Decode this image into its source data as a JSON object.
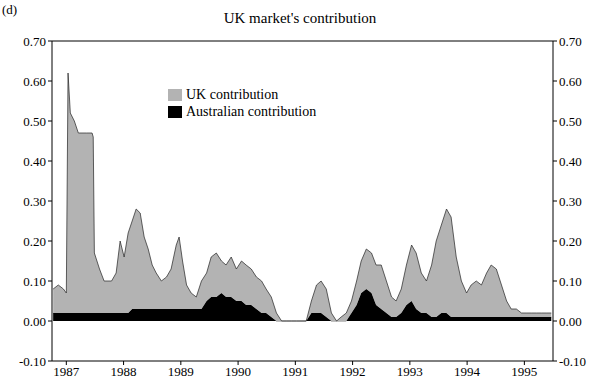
{
  "chart_data": {
    "type": "area",
    "title": "UK market's contribution",
    "annotations": [
      "(d)"
    ],
    "stacked": true,
    "grid": false,
    "legend": "upper left",
    "x": [
      1986.77,
      1986.86,
      1986.95,
      1987.0,
      1987.03,
      1987.07,
      1987.14,
      1987.21,
      1987.35,
      1987.45,
      1987.47,
      1987.49,
      1987.58,
      1987.66,
      1987.79,
      1987.87,
      1987.94,
      1988.01,
      1988.08,
      1988.15,
      1988.22,
      1988.29,
      1988.36,
      1988.43,
      1988.5,
      1988.57,
      1988.66,
      1988.75,
      1988.83,
      1988.92,
      1988.97,
      1989.03,
      1989.1,
      1989.18,
      1989.27,
      1989.36,
      1989.45,
      1989.53,
      1989.62,
      1989.71,
      1989.79,
      1989.88,
      1989.97,
      1990.06,
      1990.14,
      1990.23,
      1990.32,
      1990.41,
      1990.49,
      1990.58,
      1990.67,
      1990.76,
      1990.84,
      1990.93,
      1991.02,
      1991.1,
      1991.19,
      1991.28,
      1991.37,
      1991.45,
      1991.54,
      1991.63,
      1991.72,
      1991.8,
      1991.89,
      1991.98,
      1992.07,
      1992.15,
      1992.24,
      1992.33,
      1992.41,
      1992.5,
      1992.59,
      1992.68,
      1992.76,
      1992.85,
      1992.94,
      1993.03,
      1993.11,
      1993.2,
      1993.29,
      1993.38,
      1993.46,
      1993.55,
      1993.64,
      1993.72,
      1993.81,
      1993.9,
      1993.99,
      1994.07,
      1994.16,
      1994.25,
      1994.34,
      1994.42,
      1994.51,
      1994.6,
      1994.69,
      1994.77,
      1994.86,
      1994.95,
      1995.03,
      1995.12,
      1995.21,
      1995.3,
      1995.38,
      1995.47
    ],
    "series": [
      {
        "name": "UK contribution",
        "color": "#b3b3b3",
        "values": [
          0.06,
          0.07,
          0.06,
          0.05,
          0.6,
          0.5,
          0.48,
          0.45,
          0.45,
          0.45,
          0.44,
          0.15,
          0.11,
          0.08,
          0.08,
          0.1,
          0.18,
          0.14,
          0.2,
          0.22,
          0.25,
          0.24,
          0.18,
          0.15,
          0.11,
          0.09,
          0.07,
          0.08,
          0.1,
          0.16,
          0.18,
          0.12,
          0.06,
          0.04,
          0.03,
          0.07,
          0.07,
          0.1,
          0.11,
          0.08,
          0.08,
          0.1,
          0.08,
          0.1,
          0.1,
          0.09,
          0.08,
          0.08,
          0.06,
          0.05,
          0.02,
          0,
          0,
          0,
          0,
          0,
          0,
          0.03,
          0.07,
          0.08,
          0.07,
          0.02,
          0,
          0.01,
          0.02,
          0.03,
          0.06,
          0.08,
          0.1,
          0.1,
          0.1,
          0.11,
          0.08,
          0.05,
          0.04,
          0.06,
          0.1,
          0.14,
          0.14,
          0.1,
          0.08,
          0.13,
          0.19,
          0.22,
          0.26,
          0.25,
          0.15,
          0.09,
          0.06,
          0.08,
          0.09,
          0.08,
          0.11,
          0.13,
          0.12,
          0.08,
          0.04,
          0.02,
          0.02,
          0.01,
          0.01,
          0.01,
          0.01,
          0.01,
          0.01,
          0.01
        ]
      },
      {
        "name": "Australian contribution",
        "color": "#000000",
        "values": [
          0.02,
          0.02,
          0.02,
          0.02,
          0.02,
          0.02,
          0.02,
          0.02,
          0.02,
          0.02,
          0.02,
          0.02,
          0.02,
          0.02,
          0.02,
          0.02,
          0.02,
          0.02,
          0.02,
          0.03,
          0.03,
          0.03,
          0.03,
          0.03,
          0.03,
          0.03,
          0.03,
          0.03,
          0.03,
          0.03,
          0.03,
          0.03,
          0.03,
          0.03,
          0.03,
          0.03,
          0.05,
          0.06,
          0.06,
          0.07,
          0.06,
          0.06,
          0.05,
          0.05,
          0.04,
          0.04,
          0.03,
          0.02,
          0.02,
          0.01,
          0,
          0,
          0,
          0,
          0,
          0,
          0,
          0.02,
          0.02,
          0.02,
          0.01,
          0,
          0,
          0,
          0,
          0.02,
          0.04,
          0.07,
          0.08,
          0.07,
          0.04,
          0.03,
          0.02,
          0.01,
          0.01,
          0.02,
          0.04,
          0.05,
          0.03,
          0.02,
          0.02,
          0.01,
          0.01,
          0.02,
          0.02,
          0.01,
          0.01,
          0.01,
          0.01,
          0.01,
          0.01,
          0.01,
          0.01,
          0.01,
          0.01,
          0.01,
          0.01,
          0.01,
          0.01,
          0.01,
          0.01,
          0.01,
          0.01,
          0.01,
          0.01,
          0.01
        ]
      }
    ],
    "xlim": [
      1986.75,
      1995.5
    ],
    "xticks": [
      1987,
      1988,
      1989,
      1990,
      1991,
      1992,
      1993,
      1994,
      1995
    ],
    "ylim": [
      -0.1,
      0.7
    ],
    "yticks": [
      {
        "value": -0.1,
        "label": "-0.10"
      },
      {
        "value": 0,
        "label": "0.00"
      },
      {
        "value": 0.1,
        "label": "0.10"
      },
      {
        "value": 0.2,
        "label": "0.20"
      },
      {
        "value": 0.3,
        "label": "0.30"
      },
      {
        "value": 0.4,
        "label": "0.40"
      },
      {
        "value": 0.5,
        "label": "0.50"
      },
      {
        "value": 0.6,
        "label": "0.60"
      },
      {
        "value": 0.7,
        "label": "0.70"
      }
    ]
  }
}
